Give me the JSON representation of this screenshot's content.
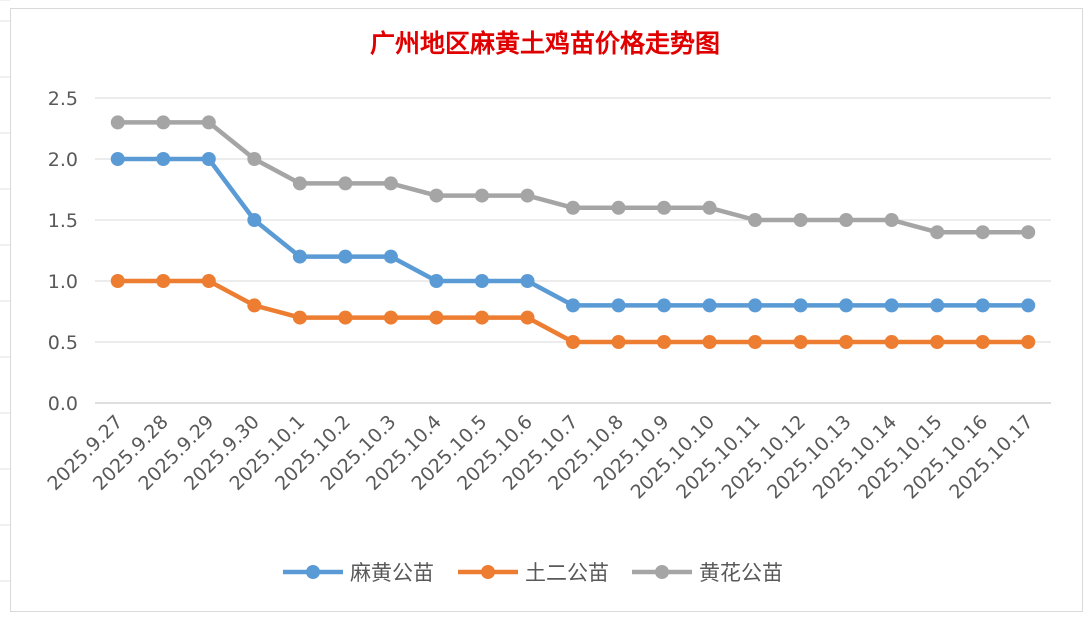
{
  "chart_data": {
    "type": "line",
    "title": "广州地区麻黄土鸡苗价格走势图",
    "xlabel": "",
    "ylabel": "",
    "categories": [
      "2025.9.27",
      "2025.9.28",
      "2025.9.29",
      "2025.9.30",
      "2025.10.1",
      "2025.10.2",
      "2025.10.3",
      "2025.10.4",
      "2025.10.5",
      "2025.10.6",
      "2025.10.7",
      "2025.10.8",
      "2025.10.9",
      "2025.10.10",
      "2025.10.11",
      "2025.10.12",
      "2025.10.13",
      "2025.10.14",
      "2025.10.15",
      "2025.10.16",
      "2025.10.17"
    ],
    "ylim": [
      0,
      2.5
    ],
    "yticks": [
      "0.0",
      "0.5",
      "1.0",
      "1.5",
      "2.0",
      "2.5"
    ],
    "grid": true,
    "legend_position": "bottom",
    "series": [
      {
        "name": "麻黄公苗",
        "color": "#5b9bd5",
        "values": [
          2.0,
          2.0,
          2.0,
          1.5,
          1.2,
          1.2,
          1.2,
          1.0,
          1.0,
          1.0,
          0.8,
          0.8,
          0.8,
          0.8,
          0.8,
          0.8,
          0.8,
          0.8,
          0.8,
          0.8,
          0.8
        ]
      },
      {
        "name": "土二公苗",
        "color": "#ed7d31",
        "values": [
          1.0,
          1.0,
          1.0,
          0.8,
          0.7,
          0.7,
          0.7,
          0.7,
          0.7,
          0.7,
          0.5,
          0.5,
          0.5,
          0.5,
          0.5,
          0.5,
          0.5,
          0.5,
          0.5,
          0.5,
          0.5
        ]
      },
      {
        "name": "黄花公苗",
        "color": "#a5a5a5",
        "values": [
          2.3,
          2.3,
          2.3,
          2.0,
          1.8,
          1.8,
          1.8,
          1.7,
          1.7,
          1.7,
          1.6,
          1.6,
          1.6,
          1.6,
          1.5,
          1.5,
          1.5,
          1.5,
          1.4,
          1.4,
          1.4
        ]
      }
    ]
  }
}
